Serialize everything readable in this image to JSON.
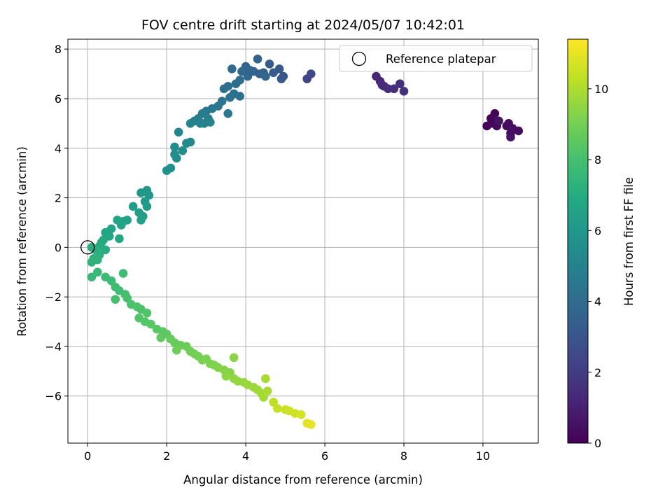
{
  "chart_data": {
    "type": "scatter",
    "title": "FOV centre drift starting at 2024/05/07 10:42:01",
    "xlabel": "Angular distance from reference (arcmin)",
    "ylabel": "Rotation from reference (arcmin)",
    "xlim": [
      -0.5,
      11.4
    ],
    "ylim": [
      -7.9,
      8.4
    ],
    "xticks": [
      0,
      2,
      4,
      6,
      8,
      10
    ],
    "yticks": [
      -6,
      -4,
      -2,
      0,
      2,
      4,
      6,
      8
    ],
    "grid": true,
    "legend": {
      "placement": "top-right",
      "entries": [
        {
          "label": "Reference platepar",
          "marker": "hollow-circle"
        }
      ]
    },
    "reference_point": {
      "x": 0,
      "y": 0
    },
    "colorbar": {
      "label": "Hours from first FF file",
      "range": [
        0,
        11.4
      ],
      "ticks": [
        0,
        2,
        4,
        6,
        8,
        10
      ],
      "colormap": "viridis"
    },
    "points": [
      [
        10.1,
        4.9,
        0.05
      ],
      [
        10.2,
        5.2,
        0.1
      ],
      [
        10.3,
        5.4,
        0.15
      ],
      [
        10.25,
        5.0,
        0.2
      ],
      [
        10.35,
        4.9,
        0.25
      ],
      [
        10.6,
        4.9,
        0.3
      ],
      [
        10.65,
        5.0,
        0.35
      ],
      [
        10.7,
        4.6,
        0.4
      ],
      [
        10.75,
        4.8,
        0.45
      ],
      [
        10.9,
        4.7,
        0.5
      ],
      [
        10.7,
        4.45,
        0.55
      ],
      [
        10.4,
        5.1,
        0.6
      ],
      [
        7.3,
        6.9,
        1.2
      ],
      [
        7.4,
        6.7,
        1.3
      ],
      [
        7.5,
        6.5,
        1.4
      ],
      [
        7.6,
        6.4,
        1.45
      ],
      [
        7.75,
        6.4,
        1.5
      ],
      [
        7.9,
        6.6,
        1.55
      ],
      [
        8.0,
        6.3,
        1.6
      ],
      [
        7.45,
        6.55,
        1.35
      ],
      [
        5.55,
        6.8,
        2.3
      ],
      [
        5.65,
        7.0,
        2.4
      ],
      [
        4.95,
        6.9,
        3.0
      ],
      [
        4.9,
        6.8,
        3.1
      ],
      [
        4.85,
        7.2,
        3.2
      ],
      [
        4.7,
        7.05,
        3.25
      ],
      [
        4.6,
        7.4,
        3.3
      ],
      [
        4.45,
        7.05,
        3.4
      ],
      [
        4.35,
        7.0,
        3.5
      ],
      [
        4.3,
        7.6,
        3.55
      ],
      [
        4.2,
        7.1,
        3.6
      ],
      [
        4.1,
        7.15,
        3.65
      ],
      [
        4.0,
        7.3,
        3.7
      ],
      [
        4.5,
        6.9,
        3.75
      ],
      [
        4.05,
        6.9,
        3.8
      ],
      [
        3.9,
        7.1,
        3.85
      ],
      [
        3.65,
        7.2,
        3.9
      ],
      [
        3.85,
        6.75,
        4.0
      ],
      [
        3.75,
        6.6,
        4.05
      ],
      [
        3.55,
        6.5,
        4.1
      ],
      [
        3.45,
        6.4,
        4.15
      ],
      [
        3.7,
        6.2,
        4.2
      ],
      [
        3.85,
        6.1,
        4.25
      ],
      [
        3.6,
        6.05,
        4.3
      ],
      [
        3.4,
        5.9,
        4.4
      ],
      [
        3.3,
        5.7,
        4.45
      ],
      [
        3.55,
        5.4,
        4.5
      ],
      [
        3.15,
        5.6,
        4.55
      ],
      [
        3.0,
        5.5,
        4.6
      ],
      [
        2.9,
        5.4,
        4.7
      ],
      [
        3.05,
        5.2,
        4.75
      ],
      [
        2.8,
        5.2,
        4.8
      ],
      [
        2.95,
        5.0,
        4.85
      ],
      [
        2.7,
        5.1,
        4.9
      ],
      [
        2.6,
        5.0,
        5.0
      ],
      [
        2.85,
        5.0,
        5.05
      ],
      [
        3.1,
        5.05,
        5.1
      ],
      [
        2.3,
        4.65,
        5.2
      ],
      [
        2.5,
        4.2,
        5.3
      ],
      [
        2.6,
        4.25,
        5.35
      ],
      [
        2.2,
        4.05,
        5.4
      ],
      [
        2.4,
        3.9,
        5.45
      ],
      [
        2.2,
        3.75,
        5.5
      ],
      [
        2.25,
        3.6,
        5.55
      ],
      [
        2.1,
        3.2,
        5.65
      ],
      [
        2.0,
        3.1,
        5.7
      ],
      [
        1.55,
        2.1,
        6.0
      ],
      [
        1.5,
        2.3,
        6.05
      ],
      [
        1.35,
        2.2,
        6.1
      ],
      [
        1.45,
        1.85,
        6.15
      ],
      [
        1.5,
        1.65,
        6.2
      ],
      [
        1.3,
        1.4,
        6.3
      ],
      [
        1.15,
        1.65,
        6.35
      ],
      [
        1.4,
        1.25,
        6.4
      ],
      [
        1.35,
        1.1,
        6.45
      ],
      [
        1.0,
        1.1,
        6.5
      ],
      [
        0.9,
        1.05,
        6.55
      ],
      [
        0.85,
        0.9,
        6.6
      ],
      [
        0.75,
        1.1,
        6.65
      ],
      [
        0.6,
        0.75,
        6.7
      ],
      [
        0.45,
        0.6,
        6.75
      ],
      [
        0.55,
        0.45,
        6.8
      ],
      [
        0.8,
        0.35,
        6.85
      ],
      [
        0.4,
        0.3,
        6.9
      ],
      [
        0.35,
        0.2,
        6.95
      ],
      [
        0.3,
        0.05,
        7.0
      ],
      [
        0.45,
        -0.1,
        7.05
      ],
      [
        0.2,
        -0.1,
        7.1
      ],
      [
        0.1,
        0.0,
        7.15
      ],
      [
        0.3,
        -0.3,
        7.2
      ],
      [
        0.15,
        -0.45,
        7.25
      ],
      [
        0.1,
        -0.6,
        7.3
      ],
      [
        0.25,
        -0.5,
        7.35
      ],
      [
        0.1,
        -1.2,
        7.6
      ],
      [
        0.25,
        -1.0,
        7.65
      ],
      [
        0.45,
        -1.2,
        7.7
      ],
      [
        0.6,
        -1.35,
        7.75
      ],
      [
        0.9,
        -1.05,
        7.8
      ],
      [
        0.7,
        -1.6,
        7.85
      ],
      [
        0.8,
        -1.75,
        7.9
      ],
      [
        0.95,
        -1.9,
        7.95
      ],
      [
        0.7,
        -2.1,
        8.0
      ],
      [
        1.0,
        -2.05,
        8.05
      ],
      [
        1.1,
        -2.3,
        8.1
      ],
      [
        1.25,
        -2.4,
        8.15
      ],
      [
        1.35,
        -2.5,
        8.2
      ],
      [
        1.5,
        -2.65,
        8.25
      ],
      [
        1.3,
        -2.85,
        8.3
      ],
      [
        1.45,
        -3.0,
        8.35
      ],
      [
        1.6,
        -3.1,
        8.4
      ],
      [
        1.75,
        -3.3,
        8.45
      ],
      [
        1.9,
        -3.4,
        8.5
      ],
      [
        2.0,
        -3.5,
        8.55
      ],
      [
        1.85,
        -3.65,
        8.6
      ],
      [
        2.1,
        -3.7,
        8.65
      ],
      [
        2.2,
        -3.85,
        8.7
      ],
      [
        2.35,
        -3.95,
        8.75
      ],
      [
        2.5,
        -4.0,
        8.8
      ],
      [
        2.25,
        -4.15,
        8.85
      ],
      [
        2.6,
        -4.2,
        8.9
      ],
      [
        2.7,
        -4.3,
        8.95
      ],
      [
        2.8,
        -4.4,
        9.0
      ],
      [
        2.9,
        -4.55,
        9.05
      ],
      [
        3.0,
        -4.5,
        9.1
      ],
      [
        3.1,
        -4.7,
        9.15
      ],
      [
        3.2,
        -4.75,
        9.2
      ],
      [
        3.3,
        -4.85,
        9.25
      ],
      [
        3.45,
        -4.95,
        9.3
      ],
      [
        3.6,
        -5.05,
        9.35
      ],
      [
        3.7,
        -4.45,
        9.4
      ],
      [
        3.5,
        -5.2,
        9.45
      ],
      [
        3.7,
        -5.3,
        9.5
      ],
      [
        3.8,
        -5.4,
        9.55
      ],
      [
        3.95,
        -5.45,
        9.6
      ],
      [
        4.05,
        -5.55,
        9.65
      ],
      [
        4.2,
        -5.65,
        9.7
      ],
      [
        4.3,
        -5.75,
        9.75
      ],
      [
        4.4,
        -5.9,
        9.8
      ],
      [
        4.45,
        -6.05,
        9.85
      ],
      [
        4.5,
        -5.3,
        9.9
      ],
      [
        4.55,
        -5.8,
        9.95
      ],
      [
        4.7,
        -6.25,
        10.3
      ],
      [
        4.8,
        -6.5,
        10.4
      ],
      [
        5.0,
        -6.55,
        10.5
      ],
      [
        5.1,
        -6.6,
        10.55
      ],
      [
        5.25,
        -6.7,
        10.6
      ],
      [
        5.4,
        -6.75,
        10.7
      ],
      [
        5.55,
        -7.1,
        10.9
      ],
      [
        5.65,
        -7.15,
        11.0
      ]
    ]
  }
}
